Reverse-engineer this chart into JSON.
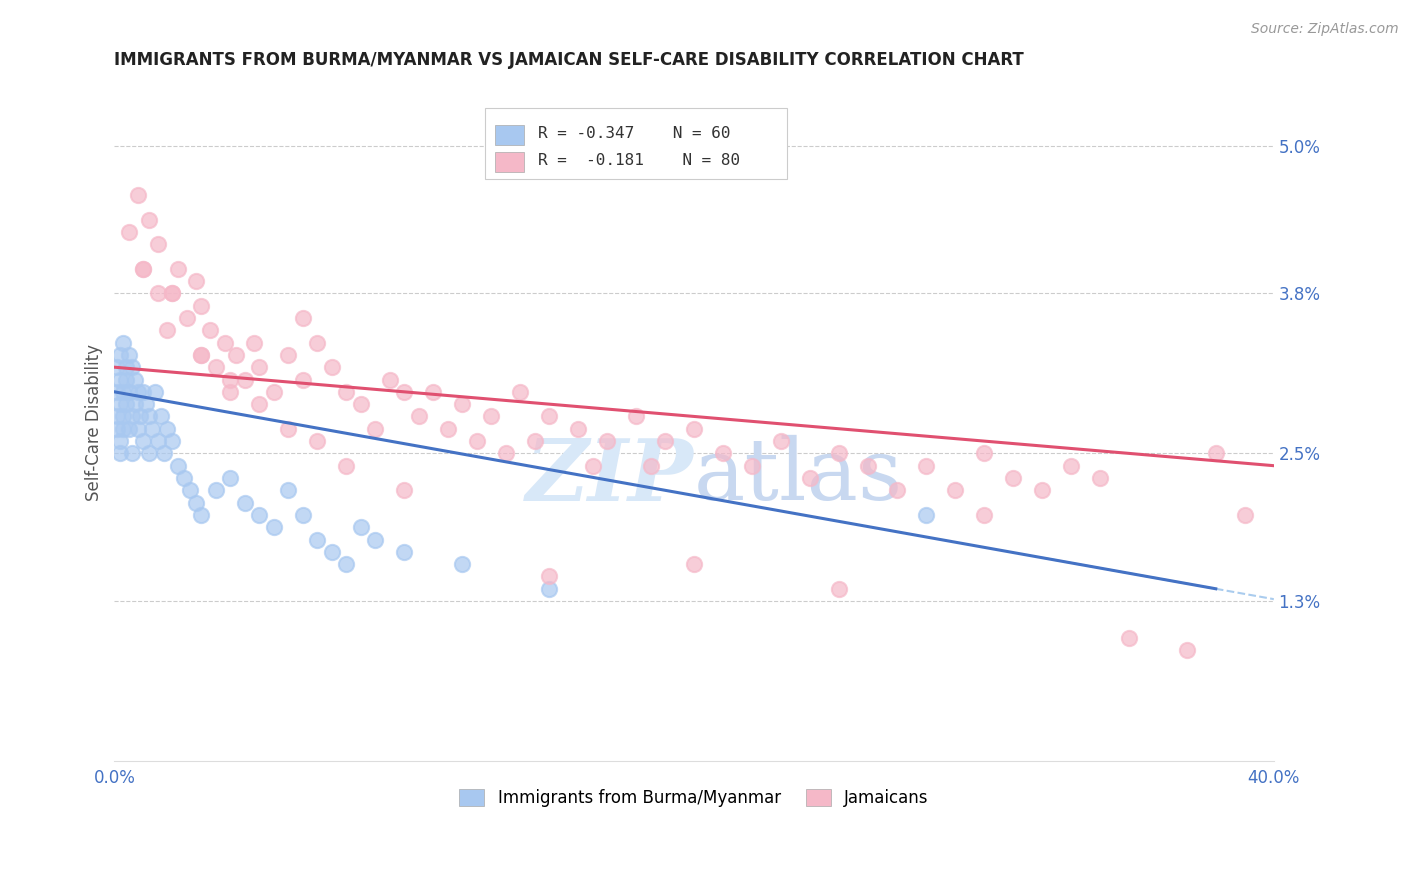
{
  "title": "IMMIGRANTS FROM BURMA/MYANMAR VS JAMAICAN SELF-CARE DISABILITY CORRELATION CHART",
  "source": "Source: ZipAtlas.com",
  "ylabel": "Self-Care Disability",
  "right_yticks": [
    "5.0%",
    "3.8%",
    "2.5%",
    "1.3%"
  ],
  "right_ytick_vals": [
    0.05,
    0.038,
    0.025,
    0.013
  ],
  "legend_label_blue": "Immigrants from Burma/Myanmar",
  "legend_label_pink": "Jamaicans",
  "legend_r_blue": "R = -0.347",
  "legend_n_blue": "N = 60",
  "legend_r_pink": "R = -0.181",
  "legend_n_pink": "N = 80",
  "blue_color": "#A8C8F0",
  "pink_color": "#F5B8C8",
  "blue_line_color": "#4472C4",
  "pink_line_color": "#E05070",
  "dash_line_color": "#AACCEE",
  "text_color": "#4472C4",
  "watermark_color": "#D8E8F8",
  "xlim": [
    0.0,
    0.4
  ],
  "ylim": [
    0.0,
    0.055
  ],
  "blue_scatter_x": [
    0.001,
    0.001,
    0.001,
    0.001,
    0.002,
    0.002,
    0.002,
    0.002,
    0.002,
    0.003,
    0.003,
    0.003,
    0.003,
    0.004,
    0.004,
    0.004,
    0.005,
    0.005,
    0.005,
    0.006,
    0.006,
    0.006,
    0.007,
    0.007,
    0.008,
    0.008,
    0.009,
    0.01,
    0.01,
    0.011,
    0.012,
    0.012,
    0.013,
    0.014,
    0.015,
    0.016,
    0.017,
    0.018,
    0.02,
    0.022,
    0.024,
    0.026,
    0.028,
    0.03,
    0.035,
    0.04,
    0.045,
    0.05,
    0.055,
    0.06,
    0.065,
    0.07,
    0.075,
    0.08,
    0.085,
    0.09,
    0.1,
    0.12,
    0.15,
    0.28
  ],
  "blue_scatter_y": [
    0.028,
    0.03,
    0.032,
    0.027,
    0.029,
    0.031,
    0.033,
    0.026,
    0.025,
    0.03,
    0.028,
    0.034,
    0.027,
    0.031,
    0.029,
    0.032,
    0.03,
    0.027,
    0.033,
    0.028,
    0.025,
    0.032,
    0.029,
    0.031,
    0.027,
    0.03,
    0.028,
    0.026,
    0.03,
    0.029,
    0.028,
    0.025,
    0.027,
    0.03,
    0.026,
    0.028,
    0.025,
    0.027,
    0.026,
    0.024,
    0.023,
    0.022,
    0.021,
    0.02,
    0.022,
    0.023,
    0.021,
    0.02,
    0.019,
    0.022,
    0.02,
    0.018,
    0.017,
    0.016,
    0.019,
    0.018,
    0.017,
    0.016,
    0.014,
    0.02
  ],
  "pink_scatter_x": [
    0.005,
    0.008,
    0.01,
    0.012,
    0.015,
    0.015,
    0.018,
    0.02,
    0.022,
    0.025,
    0.028,
    0.03,
    0.03,
    0.033,
    0.035,
    0.038,
    0.04,
    0.042,
    0.045,
    0.048,
    0.05,
    0.055,
    0.06,
    0.065,
    0.065,
    0.07,
    0.075,
    0.08,
    0.085,
    0.09,
    0.095,
    0.1,
    0.105,
    0.11,
    0.115,
    0.12,
    0.125,
    0.13,
    0.135,
    0.14,
    0.145,
    0.15,
    0.16,
    0.165,
    0.17,
    0.18,
    0.185,
    0.19,
    0.2,
    0.21,
    0.22,
    0.23,
    0.24,
    0.25,
    0.26,
    0.27,
    0.28,
    0.29,
    0.3,
    0.31,
    0.32,
    0.33,
    0.34,
    0.01,
    0.02,
    0.03,
    0.04,
    0.05,
    0.06,
    0.07,
    0.08,
    0.1,
    0.15,
    0.2,
    0.25,
    0.3,
    0.35,
    0.37,
    0.38,
    0.39
  ],
  "pink_scatter_y": [
    0.043,
    0.046,
    0.04,
    0.044,
    0.038,
    0.042,
    0.035,
    0.038,
    0.04,
    0.036,
    0.039,
    0.033,
    0.037,
    0.035,
    0.032,
    0.034,
    0.03,
    0.033,
    0.031,
    0.034,
    0.032,
    0.03,
    0.033,
    0.031,
    0.036,
    0.034,
    0.032,
    0.03,
    0.029,
    0.027,
    0.031,
    0.03,
    0.028,
    0.03,
    0.027,
    0.029,
    0.026,
    0.028,
    0.025,
    0.03,
    0.026,
    0.028,
    0.027,
    0.024,
    0.026,
    0.028,
    0.024,
    0.026,
    0.027,
    0.025,
    0.024,
    0.026,
    0.023,
    0.025,
    0.024,
    0.022,
    0.024,
    0.022,
    0.025,
    0.023,
    0.022,
    0.024,
    0.023,
    0.04,
    0.038,
    0.033,
    0.031,
    0.029,
    0.027,
    0.026,
    0.024,
    0.022,
    0.015,
    0.016,
    0.014,
    0.02,
    0.01,
    0.009,
    0.025,
    0.02
  ],
  "blue_line_x": [
    0.0,
    0.38
  ],
  "blue_line_y": [
    0.03,
    0.014
  ],
  "pink_line_x": [
    0.0,
    0.4
  ],
  "pink_line_y": [
    0.032,
    0.024
  ],
  "dash_line_x": [
    0.38,
    0.4
  ],
  "dash_line_y": [
    0.014,
    0.012
  ],
  "grid_color": "#CCCCCC",
  "grid_yticks": [
    0.05,
    0.038,
    0.025,
    0.013
  ]
}
